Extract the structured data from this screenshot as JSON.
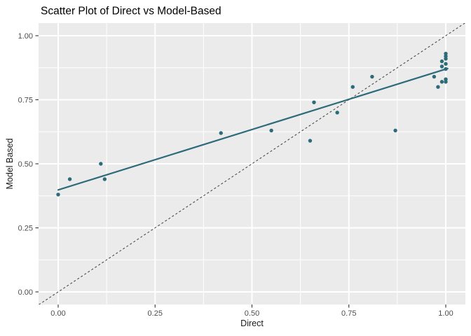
{
  "chart_data": {
    "type": "scatter",
    "title": "Scatter Plot of Direct vs Model-Based",
    "xlabel": "Direct",
    "ylabel": "Model Based",
    "xlim": [
      -0.05,
      1.05
    ],
    "ylim": [
      -0.05,
      1.05
    ],
    "x_ticks": [
      0,
      0.25,
      0.5,
      0.75,
      1.0
    ],
    "x_tick_labels": [
      "0.00",
      "0.25",
      "0.50",
      "0.75",
      "1.00"
    ],
    "y_ticks": [
      0,
      0.25,
      0.5,
      0.75,
      1.0
    ],
    "y_tick_labels": [
      "0.00",
      "0.25",
      "0.50",
      "0.75",
      "1.00"
    ],
    "x_minor_ticks": [
      0.125,
      0.375,
      0.625,
      0.875
    ],
    "y_minor_ticks": [
      0.125,
      0.375,
      0.625,
      0.875
    ],
    "grid": "on",
    "legend": "none",
    "points": [
      [
        0.0,
        0.38
      ],
      [
        0.03,
        0.44
      ],
      [
        0.11,
        0.5
      ],
      [
        0.12,
        0.44
      ],
      [
        0.42,
        0.62
      ],
      [
        0.55,
        0.63
      ],
      [
        0.65,
        0.59
      ],
      [
        0.66,
        0.74
      ],
      [
        0.72,
        0.7
      ],
      [
        0.76,
        0.8
      ],
      [
        0.81,
        0.84
      ],
      [
        0.87,
        0.63
      ],
      [
        0.97,
        0.84
      ],
      [
        0.98,
        0.8
      ],
      [
        0.99,
        0.82
      ],
      [
        1.0,
        0.82
      ],
      [
        1.0,
        0.83
      ],
      [
        0.99,
        0.88
      ],
      [
        1.0,
        0.87
      ],
      [
        0.99,
        0.9
      ],
      [
        1.0,
        0.89
      ],
      [
        1.0,
        0.91
      ],
      [
        1.0,
        0.92
      ],
      [
        1.0,
        0.93
      ]
    ],
    "regression_line": {
      "start": [
        0.0,
        0.398
      ],
      "end": [
        1.005,
        0.872
      ]
    },
    "identity_line": {
      "start": [
        -0.05,
        -0.05
      ],
      "end": [
        1.05,
        1.05
      ],
      "style": "dashed"
    },
    "colors": {
      "points": "#2d6b7a",
      "regression_line": "#2d6b7a",
      "identity_line": "#3c3c3c",
      "panel_background": "#ebebeb",
      "grid": "#ffffff",
      "tick_marks": "#333333",
      "tick_labels": "#4d4d4d",
      "axis_titles": "#1a1a1a",
      "title": "#000000"
    }
  }
}
